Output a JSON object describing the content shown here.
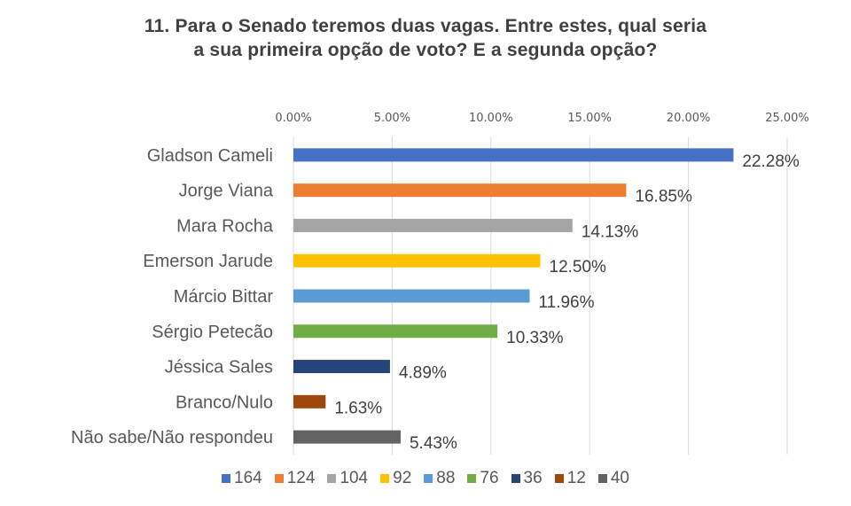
{
  "chart_data": {
    "type": "bar",
    "orientation": "horizontal",
    "title_lines": [
      "11. Para o Senado teremos duas vagas. Entre estes, qual seria",
      "a sua primeira opção de voto? E a segunda opção?"
    ],
    "categories": [
      "Gladson Cameli",
      "Jorge Viana",
      "Mara Rocha",
      "Emerson Jarude",
      "Márcio Bittar",
      "Sérgio Petecão",
      "Jéssica Sales",
      "Branco/Nulo",
      "Não sabe/Não respondeu"
    ],
    "values": [
      22.28,
      16.85,
      14.13,
      12.5,
      11.96,
      10.33,
      4.89,
      1.63,
      5.43
    ],
    "data_labels": [
      "22.28%",
      "16.85%",
      "14.13%",
      "12.50%",
      "11.96%",
      "10.33%",
      "4.89%",
      "1.63%",
      "5.43%"
    ],
    "colors": [
      "#4472C4",
      "#ED7D31",
      "#A5A5A5",
      "#FFC000",
      "#5B9BD5",
      "#70AD47",
      "#264478",
      "#9E480E",
      "#636363"
    ],
    "xlim": [
      0,
      25
    ],
    "x_ticks": [
      0,
      5,
      10,
      15,
      20,
      25
    ],
    "x_tick_labels": [
      "0.00%",
      "5.00%",
      "10.00%",
      "15.00%",
      "20.00%",
      "25.00%"
    ],
    "x_axis_position": "top",
    "grid": true,
    "legend": {
      "placement": "bottom",
      "entries": [
        "164",
        "124",
        "104",
        "92",
        "88",
        "76",
        "36",
        "12",
        "40"
      ]
    },
    "xlabel": "",
    "ylabel": ""
  }
}
